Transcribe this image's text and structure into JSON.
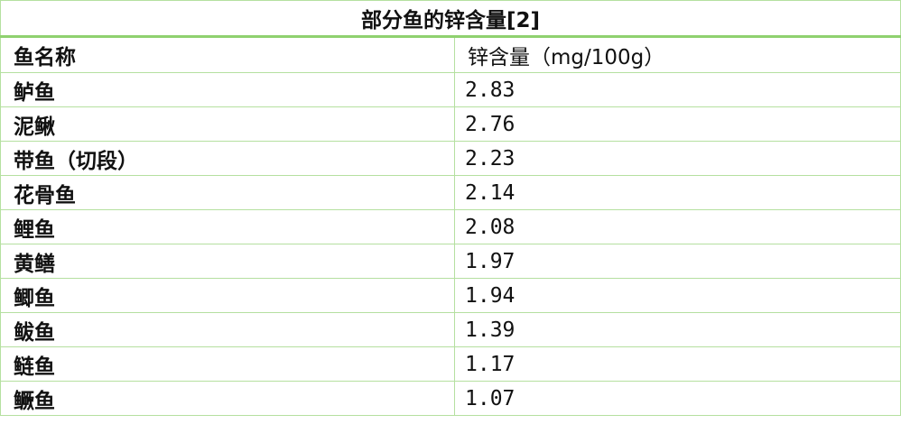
{
  "title": "部分鱼的锌含量[2]",
  "headers": [
    "鱼名称",
    "锌含量（mg/100g）"
  ],
  "rows": [
    [
      "鲈鱼",
      "2.83"
    ],
    [
      "泥鳅",
      "2.76"
    ],
    [
      "带鱼（切段）",
      "2.23"
    ],
    [
      "花骨鱼",
      "2.14"
    ],
    [
      "鲤鱼",
      "2.08"
    ],
    [
      "黄鳝",
      "1.97"
    ],
    [
      "鲫鱼",
      "1.94"
    ],
    [
      "鲅鱼",
      "1.39"
    ],
    [
      "鲢鱼",
      "1.17"
    ],
    [
      "鳜鱼",
      "1.07"
    ]
  ],
  "colors": {
    "border": "#b5e0a0",
    "title_rule": "#8fd16f"
  }
}
